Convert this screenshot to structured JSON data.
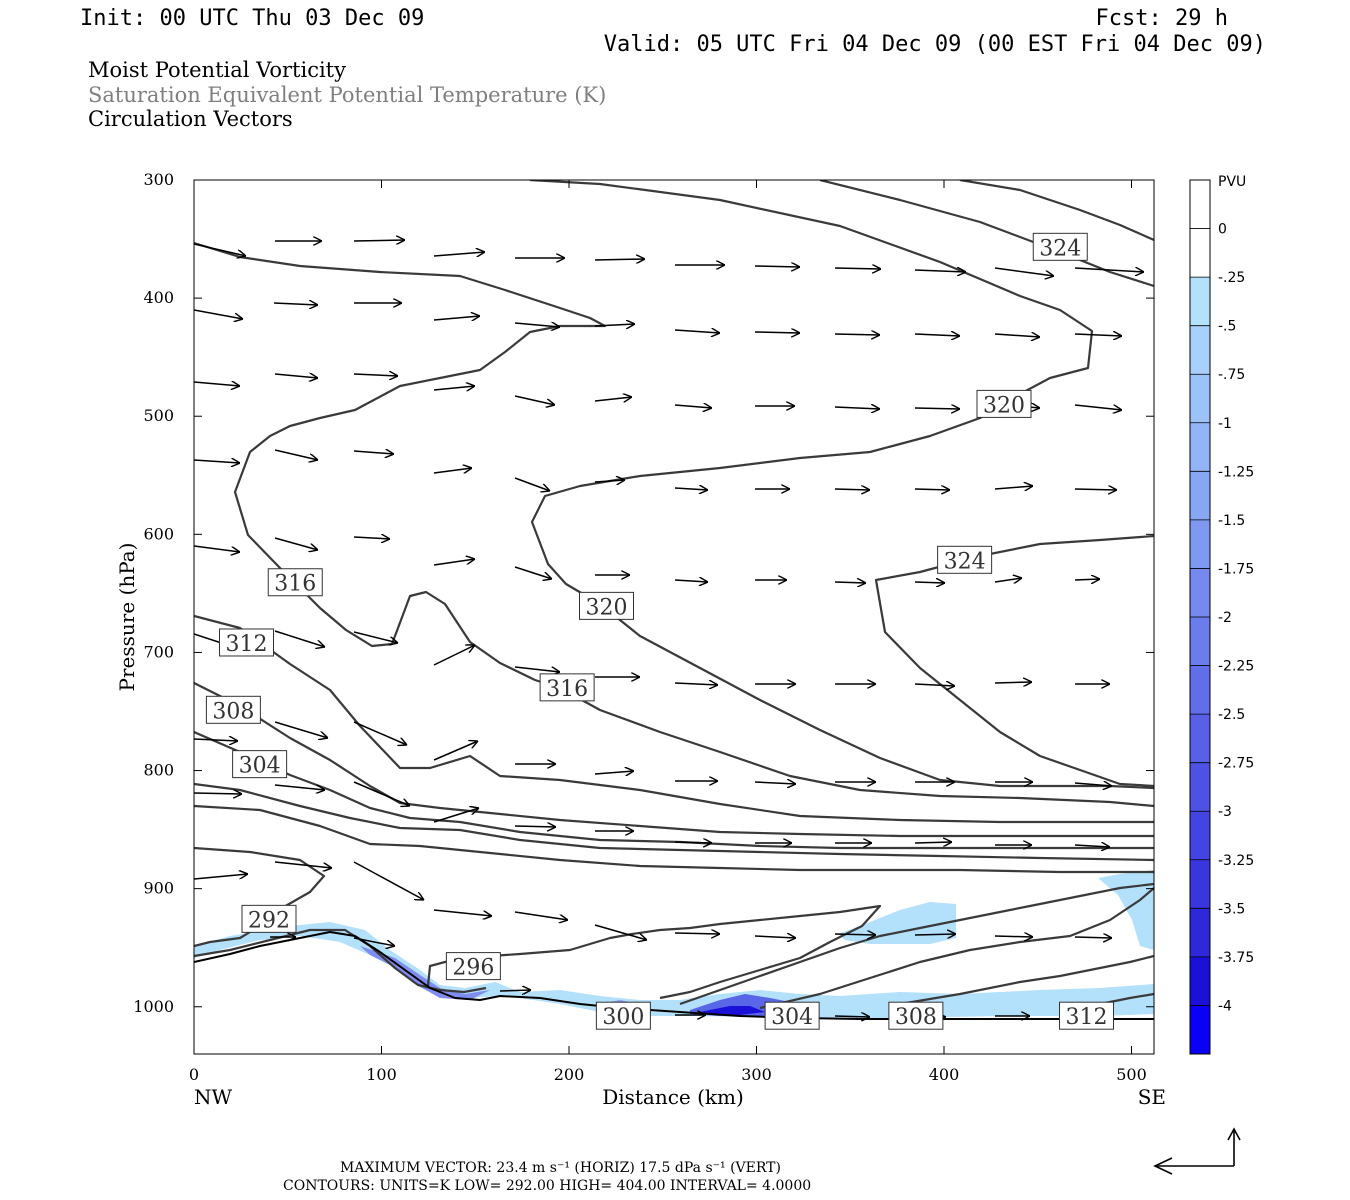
{
  "header": {
    "init": "Init: 00 UTC Thu 03 Dec 09",
    "fcst": "Fcst:   29 h",
    "valid": "Valid: 05 UTC Fri 04 Dec 09 (00 EST Fri 04 Dec 09)"
  },
  "titles": {
    "line1": "Moist Potential Vorticity",
    "line2": "Saturation Equivalent Potential Temperature (K)",
    "line3": "Circulation Vectors"
  },
  "colors": {
    "title2": "#7f7f7f",
    "contour": "#3a3a3a",
    "shade_light": "#b3e0fb"
  },
  "chart_data": {
    "type": "cross-section",
    "xlabel": "Distance (km)",
    "ylabel": "Pressure (hPa)",
    "xlim": [
      0,
      512
    ],
    "ylim": [
      1040,
      300
    ],
    "x_ticks": [
      0,
      100,
      200,
      300,
      400,
      500
    ],
    "x_tick_labels": [
      "0",
      "100",
      "200",
      "300",
      "400",
      "500"
    ],
    "y_ticks": [
      300,
      400,
      500,
      600,
      700,
      800,
      900,
      1000
    ],
    "y_tick_labels": [
      "300",
      "400",
      "500",
      "600",
      "700",
      "800",
      "900",
      "1000"
    ],
    "left_endpoint": "NW",
    "right_endpoint": "SE",
    "contour_labels": [
      {
        "text": "324",
        "x": 462,
        "p": 357
      },
      {
        "text": "320",
        "x": 432,
        "p": 490
      },
      {
        "text": "324",
        "x": 411,
        "p": 622
      },
      {
        "text": "316",
        "x": 54,
        "p": 641
      },
      {
        "text": "320",
        "x": 220,
        "p": 661
      },
      {
        "text": "312",
        "x": 28,
        "p": 692
      },
      {
        "text": "316",
        "x": 199,
        "p": 730
      },
      {
        "text": "308",
        "x": 21,
        "p": 749
      },
      {
        "text": "304",
        "x": 35,
        "p": 795
      },
      {
        "text": "292",
        "x": 40,
        "p": 926
      },
      {
        "text": "296",
        "x": 149,
        "p": 966
      },
      {
        "text": "300",
        "x": 229,
        "p": 1008
      },
      {
        "text": "304",
        "x": 319,
        "p": 1008
      },
      {
        "text": "308",
        "x": 385,
        "p": 1008
      },
      {
        "text": "312",
        "x": 476,
        "p": 1008
      }
    ],
    "colorbar": {
      "unit": "PVU",
      "levels": [
        "0",
        "-.25",
        "-.5",
        "-.75",
        "-1",
        "-1.25",
        "-1.5",
        "-1.75",
        "-2",
        "-2.25",
        "-2.5",
        "-2.75",
        "-3",
        "-3.25",
        "-3.5",
        "-3.75",
        "-4"
      ],
      "colors": [
        "#ffffff",
        "#ffffff",
        "#b3e0fb",
        "#a8d0fa",
        "#9dc2f8",
        "#93b4f6",
        "#89a6f4",
        "#7f98f2",
        "#758aef",
        "#6b7ced",
        "#616eea",
        "#5760e7",
        "#4d52e4",
        "#4344e1",
        "#3936de",
        "#2f28da",
        "#1a10d8",
        "#0a00f5"
      ]
    }
  },
  "footer": {
    "line1": "MAXIMUM VECTOR:  23.4 m s⁻¹ (HORIZ)          17.5 dPa s⁻¹ (VERT)",
    "line2": "CONTOURS:  UNITS=K  LOW=  292.00        HIGH=  404.00        INTERVAL=    4.0000"
  }
}
